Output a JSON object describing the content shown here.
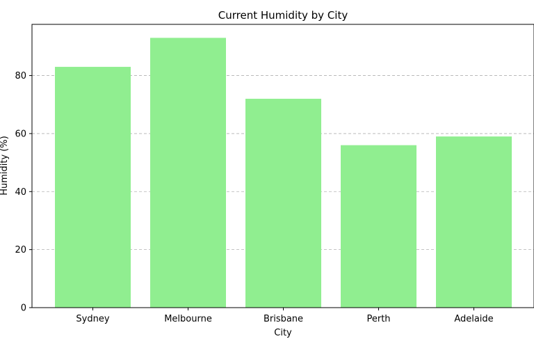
{
  "chart_data": {
    "type": "bar",
    "title": "Current Humidity by City",
    "xlabel": "City",
    "ylabel": "Humidity (%)",
    "categories": [
      "Sydney",
      "Melbourne",
      "Brisbane",
      "Perth",
      "Adelaide"
    ],
    "values": [
      83,
      93,
      72,
      56,
      59
    ],
    "ylim": [
      0,
      97.65
    ],
    "yticks": [
      0,
      20,
      40,
      60,
      80
    ],
    "grid": "y-dashed",
    "bar_color": "#90ee90"
  }
}
